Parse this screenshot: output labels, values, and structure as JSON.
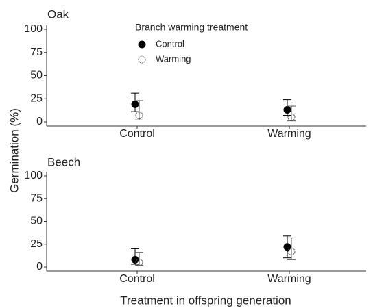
{
  "axis_labels": {
    "y": "Germination (%)",
    "x": "Treatment in offspring generation"
  },
  "chart_data": [
    {
      "type": "errorbar",
      "title": "Oak",
      "legend_title": "Branch warming treatment",
      "legend": true,
      "categories": [
        "Control",
        "Warming"
      ],
      "ylim": [
        0,
        100
      ],
      "yticks": [
        0,
        25,
        50,
        75,
        100
      ],
      "series": [
        {
          "name": "Control",
          "color": "#000000",
          "filled": true,
          "values": [
            19,
            13
          ],
          "lower": [
            11,
            7
          ],
          "upper": [
            31,
            24
          ]
        },
        {
          "name": "Warming",
          "color": "#555555",
          "filled": false,
          "values": [
            7,
            5
          ],
          "lower": [
            2,
            1
          ],
          "upper": [
            23,
            17
          ]
        }
      ]
    },
    {
      "type": "errorbar",
      "title": "Beech",
      "legend": false,
      "categories": [
        "Control",
        "Warming"
      ],
      "ylim": [
        0,
        100
      ],
      "yticks": [
        0,
        25,
        50,
        75,
        100
      ],
      "series": [
        {
          "name": "Control",
          "color": "#000000",
          "filled": true,
          "values": [
            8,
            22
          ],
          "lower": [
            3,
            10
          ],
          "upper": [
            20,
            34
          ]
        },
        {
          "name": "Warming",
          "color": "#555555",
          "filled": false,
          "values": [
            5,
            17
          ],
          "lower": [
            2,
            8
          ],
          "upper": [
            16,
            32
          ]
        }
      ]
    }
  ]
}
